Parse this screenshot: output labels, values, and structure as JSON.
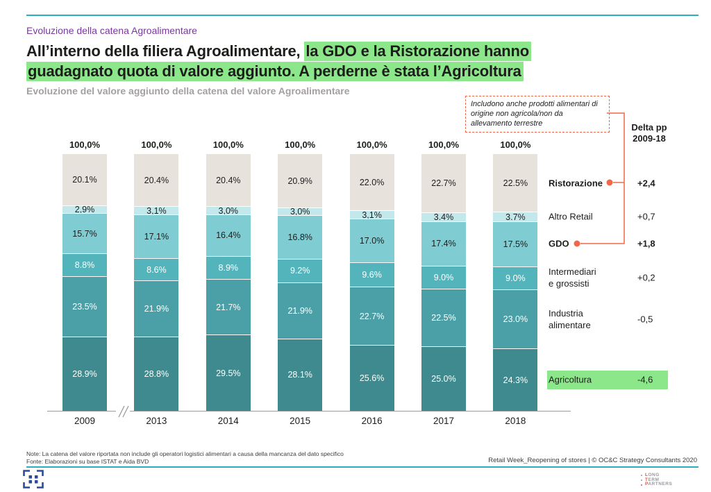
{
  "slide": {
    "eyebrow": "Evoluzione della catena Agroalimentare",
    "title_plain": "All’interno della filiera Agroalimentare, ",
    "title_highlight_line1": "la GDO e la Ristorazione hanno",
    "title_highlight_line2": "guadagnato quota di valore aggiunto. A perderne è stata l’Agricoltura",
    "subtitle": "Evoluzione del valore aggiunto della catena del valore Agroalimentare",
    "annotation": "Includono anche prodotti alimentari di origine non agricola/non da allevamento terrestre",
    "delta_header_line1": "Delta pp",
    "delta_header_line2": "2009-18",
    "note_line1": "Note: La catena del valore riportata non include gli operatori logistici alimentari a causa della mancanza del dato specifico",
    "note_line2": "Fonte: Elaborazioni su base ISTAT e Aida BVD",
    "footer_right": "Retail Week_Reopening of stores | © OC&C Strategy Consultants 2020",
    "ltp_lines": [
      {
        "first": "L",
        "rest": "ONG"
      },
      {
        "first": "T",
        "rest": "ERM"
      },
      {
        "first": "P",
        "rest": "ARTNERS"
      }
    ]
  },
  "colors": {
    "accent_teal_rule": "#2ab0bd",
    "eyebrow_purple": "#7a35a3",
    "highlight_green": "#8ce78a",
    "connector_coral": "#f2664b",
    "logo_blue": "#2b4a97"
  },
  "chart_data": {
    "type": "bar",
    "stacked": true,
    "title": "Evoluzione del valore aggiunto della catena del valore Agroalimentare",
    "categories": [
      "2009",
      "2013",
      "2014",
      "2015",
      "2016",
      "2017",
      "2018"
    ],
    "total_label": "100,0%",
    "ylim": [
      0,
      100
    ],
    "axis_break_after_first_category": true,
    "series": [
      {
        "name": "Ristorazione",
        "label_lines": [
          "Ristorazione"
        ],
        "bold": true,
        "dot": true,
        "color": "#e8e2dd",
        "text_color": "#1d1d1b",
        "delta": "+2,4",
        "delta_bold": true,
        "values": [
          20.1,
          20.4,
          20.4,
          20.9,
          22.0,
          22.7,
          22.5
        ],
        "labels": [
          "20.1%",
          "20.4%",
          "20.4%",
          "20.9%",
          "22.0%",
          "22.7%",
          "22.5%"
        ]
      },
      {
        "name": "Altro Retail",
        "label_lines": [
          "Altro Retail"
        ],
        "bold": false,
        "dot": false,
        "color": "#c3e8eb",
        "text_color": "#1d1d1b",
        "delta": "+0,7",
        "delta_bold": false,
        "values": [
          2.9,
          3.1,
          3.0,
          3.0,
          3.1,
          3.4,
          3.7
        ],
        "labels": [
          "2,9%",
          "3,1%",
          "3,0%",
          "3,0%",
          "3,1%",
          "3.4%",
          "3.7%"
        ]
      },
      {
        "name": "GDO",
        "label_lines": [
          "GDO"
        ],
        "bold": true,
        "dot": true,
        "color": "#7fccd3",
        "text_color": "#1d1d1b",
        "delta": "+1,8",
        "delta_bold": true,
        "values": [
          15.7,
          17.1,
          16.4,
          16.8,
          17.0,
          17.4,
          17.5
        ],
        "labels": [
          "15.7%",
          "17.1%",
          "16.4%",
          "16.8%",
          "17.0%",
          "17.4%",
          "17.5%"
        ]
      },
      {
        "name": "Intermediari e grossisti",
        "label_lines": [
          "Intermediari",
          "e grossisti"
        ],
        "bold": false,
        "dot": false,
        "color": "#54b4bb",
        "text_color": "#ffffff",
        "delta": "+0,2",
        "delta_bold": false,
        "values": [
          8.8,
          8.6,
          8.9,
          9.2,
          9.6,
          9.0,
          9.0
        ],
        "labels": [
          "8.8%",
          "8.6%",
          "8.9%",
          "9.2%",
          "9.6%",
          "9.0%",
          "9.0%"
        ]
      },
      {
        "name": "Industria alimentare",
        "label_lines": [
          "Industria",
          "alimentare"
        ],
        "bold": false,
        "dot": false,
        "color": "#4aa0a6",
        "text_color": "#ffffff",
        "delta": "-0,5",
        "delta_bold": false,
        "values": [
          23.5,
          21.9,
          21.7,
          21.9,
          22.7,
          22.5,
          23.0
        ],
        "labels": [
          "23.5%",
          "21.9%",
          "21.7%",
          "21.9%",
          "22.7%",
          "22.5%",
          "23.0%"
        ]
      },
      {
        "name": "Agricoltura",
        "label_lines": [
          "Agricoltura"
        ],
        "bold": false,
        "dot": false,
        "highlight": true,
        "color": "#3f8a8e",
        "text_color": "#ffffff",
        "delta": "-4,6",
        "delta_bold": false,
        "values": [
          28.9,
          28.8,
          29.5,
          28.1,
          25.6,
          25.0,
          24.3
        ],
        "labels": [
          "28.9%",
          "28.8%",
          "29.5%",
          "28.1%",
          "25.6%",
          "25.0%",
          "24.3%"
        ]
      }
    ]
  }
}
